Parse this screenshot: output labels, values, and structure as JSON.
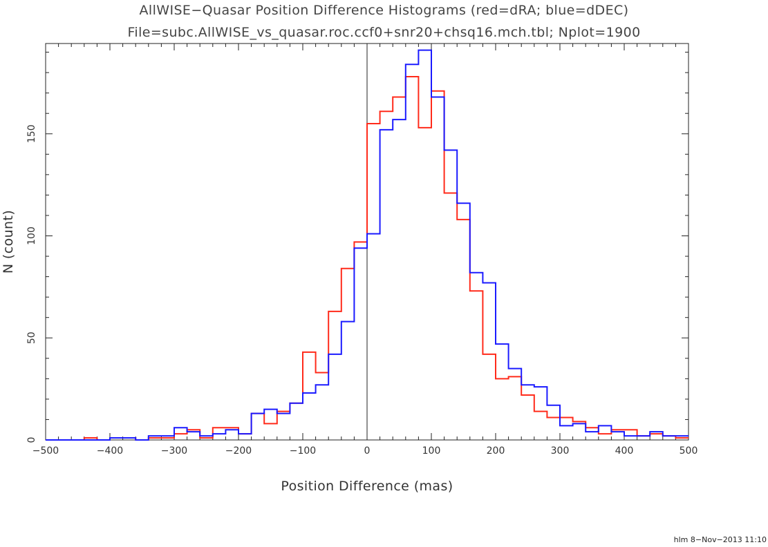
{
  "chart_data": {
    "type": "histogram",
    "title": "AllWISE−Quasar Position Difference Histograms (red=dRA; blue=dDEC)",
    "subtitle": "File=subc.AllWISE_vs_quasar.roc.ccf0+snr20+chsq16.mch.tbl; Nplot=1900",
    "xlabel": "Position Difference (mas)",
    "ylabel": "N (count)",
    "xlim": [
      -500,
      500
    ],
    "ylim": [
      0,
      195
    ],
    "xticks": [
      -500,
      -400,
      -300,
      -200,
      -100,
      0,
      100,
      200,
      300,
      400,
      500
    ],
    "xtick_labels": [
      "−500",
      "−400",
      "−300",
      "−200",
      "−100",
      "0",
      "100",
      "200",
      "300",
      "400",
      "500"
    ],
    "yticks": [
      0,
      50,
      100,
      150
    ],
    "ytick_labels": [
      "0",
      "50",
      "100",
      "150"
    ],
    "bin_edges": [
      -500,
      -480,
      -460,
      -440,
      -420,
      -400,
      -380,
      -360,
      -340,
      -320,
      -300,
      -280,
      -260,
      -240,
      -220,
      -200,
      -180,
      -160,
      -140,
      -120,
      -100,
      -80,
      -60,
      -40,
      -20,
      0,
      20,
      40,
      60,
      80,
      100,
      120,
      140,
      160,
      180,
      200,
      220,
      240,
      260,
      280,
      300,
      320,
      340,
      360,
      380,
      400,
      420,
      440,
      460,
      480,
      500
    ],
    "series": [
      {
        "name": "dRA",
        "color": "#ff2a1a",
        "counts": [
          0,
          0,
          0,
          1,
          0,
          1,
          1,
          0,
          1,
          1,
          3,
          5,
          1,
          6,
          6,
          3,
          13,
          8,
          14,
          18,
          43,
          33,
          63,
          84,
          97,
          155,
          161,
          168,
          178,
          153,
          171,
          121,
          108,
          73,
          42,
          30,
          31,
          22,
          14,
          11,
          11,
          9,
          6,
          3,
          5,
          5,
          2,
          3,
          2,
          1
        ]
      },
      {
        "name": "dDEC",
        "color": "#1a1aff",
        "counts": [
          0,
          0,
          0,
          0,
          0,
          1,
          1,
          0,
          2,
          2,
          6,
          4,
          2,
          3,
          5,
          3,
          13,
          15,
          13,
          18,
          23,
          27,
          42,
          58,
          94,
          101,
          152,
          157,
          184,
          191,
          168,
          142,
          116,
          82,
          77,
          47,
          35,
          27,
          26,
          17,
          7,
          8,
          4,
          7,
          4,
          2,
          2,
          4,
          2,
          2
        ]
      }
    ]
  },
  "footer": {
    "stamp": "hlm   8−Nov−2013 11:10"
  }
}
